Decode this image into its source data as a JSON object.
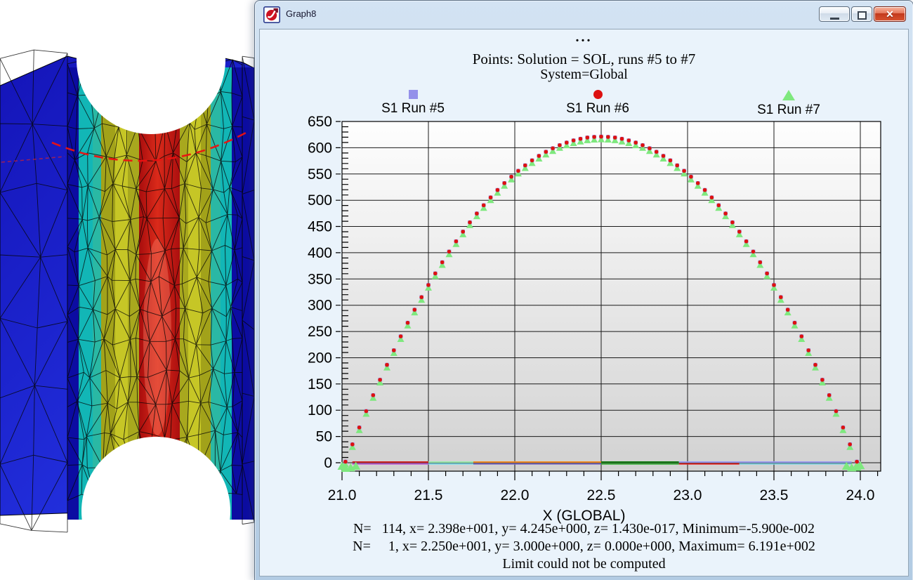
{
  "window": {
    "title": "Graph8",
    "controls": {
      "minimize_label": "minimize",
      "restore_label": "restore",
      "close_label": "close"
    }
  },
  "fea_view": {
    "contour_colors": [
      "#0c0ca2",
      "#12b6b6",
      "#2ab8a4",
      "#a2a21a",
      "#c6c626",
      "#a8a81e",
      "#c81414"
    ],
    "body_blue_top": "#1414b8",
    "body_blue_bottom": "#2433e2",
    "mesh_color": "#050505",
    "dashed_line_color": "#ee1111",
    "background": "#ffffff"
  },
  "chart_data": {
    "type": "scatter",
    "title_dots": "...",
    "title": "Points: Solution = SOL, runs #5 to #7",
    "subtitle": "System=Global",
    "xlabel": "X (GLOBAL)",
    "xlim": [
      21.0,
      24.118
    ],
    "ylim": [
      -16,
      650
    ],
    "x_ticks": [
      21.0,
      21.5,
      22.0,
      22.5,
      23.0,
      23.5,
      24.0
    ],
    "x_tick_labels": [
      "21.0",
      "21.5",
      "22.0",
      "22.5",
      "23.0",
      "23.5",
      "24.0"
    ],
    "y_ticks": [
      0,
      50,
      100,
      150,
      200,
      250,
      300,
      350,
      400,
      450,
      500,
      550,
      600,
      650
    ],
    "x_minor_step": 0.1,
    "y_minor_step": 10,
    "grid": true,
    "plot_bg_top": "#fefefe",
    "plot_bg_bottom": "#d2d2d2",
    "legend": [
      {
        "name": "S1 Run #5",
        "marker": "square",
        "color": "#9490ea"
      },
      {
        "name": "S1 Run #6",
        "marker": "circle",
        "color": "#dd1111"
      },
      {
        "name": "S1 Run #7",
        "marker": "triangle",
        "color": "#7ee87e"
      }
    ],
    "series_note": "Three runs overlap on identical values; peak 619.1 at x=22.5, zero at x=21 and x=24",
    "points": [
      [
        21.02,
        0
      ],
      [
        21.06,
        33
      ],
      [
        21.1,
        65.1
      ],
      [
        21.14,
        96.3
      ],
      [
        21.18,
        126.6
      ],
      [
        21.22,
        156
      ],
      [
        21.26,
        184.5
      ],
      [
        21.3,
        212.1
      ],
      [
        21.34,
        238.8
      ],
      [
        21.38,
        264.6
      ],
      [
        21.42,
        289.4
      ],
      [
        21.46,
        313.4
      ],
      [
        21.5,
        336.5
      ],
      [
        21.54,
        358.6
      ],
      [
        21.58,
        379.9
      ],
      [
        21.62,
        400.2
      ],
      [
        21.66,
        419.7
      ],
      [
        21.7,
        438.2
      ],
      [
        21.74,
        455.8
      ],
      [
        21.78,
        472.6
      ],
      [
        21.82,
        488.4
      ],
      [
        21.86,
        503.3
      ],
      [
        21.9,
        517.4
      ],
      [
        21.94,
        530.5
      ],
      [
        21.98,
        542.7
      ],
      [
        22.02,
        554
      ],
      [
        22.06,
        564.4
      ],
      [
        22.1,
        573.9
      ],
      [
        22.14,
        582.5
      ],
      [
        22.18,
        590.2
      ],
      [
        22.22,
        596.9
      ],
      [
        22.26,
        602.8
      ],
      [
        22.3,
        607.8
      ],
      [
        22.34,
        611.9
      ],
      [
        22.38,
        615
      ],
      [
        22.42,
        617.3
      ],
      [
        22.46,
        618.6
      ],
      [
        22.5,
        619.1
      ],
      [
        22.54,
        618.6
      ],
      [
        22.58,
        617.3
      ],
      [
        22.62,
        615
      ],
      [
        22.66,
        611.9
      ],
      [
        22.7,
        607.8
      ],
      [
        22.74,
        602.8
      ],
      [
        22.78,
        596.9
      ],
      [
        22.82,
        590.2
      ],
      [
        22.86,
        582.5
      ],
      [
        22.9,
        573.9
      ],
      [
        22.94,
        564.4
      ],
      [
        22.98,
        554
      ],
      [
        23.02,
        542.7
      ],
      [
        23.06,
        530.5
      ],
      [
        23.1,
        517.4
      ],
      [
        23.14,
        503.3
      ],
      [
        23.18,
        488.4
      ],
      [
        23.22,
        472.6
      ],
      [
        23.26,
        455.8
      ],
      [
        23.3,
        438.2
      ],
      [
        23.34,
        419.7
      ],
      [
        23.38,
        400.2
      ],
      [
        23.42,
        379.9
      ],
      [
        23.46,
        358.6
      ],
      [
        23.5,
        336.5
      ],
      [
        23.54,
        313.4
      ],
      [
        23.58,
        289.4
      ],
      [
        23.62,
        264.6
      ],
      [
        23.66,
        238.8
      ],
      [
        23.7,
        212.1
      ],
      [
        23.74,
        184.5
      ],
      [
        23.78,
        156
      ],
      [
        23.82,
        126.6
      ],
      [
        23.86,
        96.3
      ],
      [
        23.9,
        65.1
      ],
      [
        23.94,
        33
      ],
      [
        23.98,
        0
      ]
    ],
    "end_clusters": [
      [
        21.0,
        -4
      ],
      [
        21.02,
        -8
      ],
      [
        21.05,
        -7
      ],
      [
        21.08,
        -4
      ],
      [
        23.92,
        -4
      ],
      [
        23.95,
        -7
      ],
      [
        23.98,
        -6
      ],
      [
        24.0,
        -3
      ]
    ],
    "baseline_segments": [
      {
        "x1": 21.06,
        "x2": 21.5,
        "color": "#cc2222",
        "row": 0
      },
      {
        "x1": 21.06,
        "x2": 21.5,
        "color": "#bb55cc",
        "row": 1
      },
      {
        "x1": 21.5,
        "x2": 21.76,
        "color": "#99e8aa",
        "row": 0
      },
      {
        "x1": 21.5,
        "x2": 21.76,
        "color": "#77d8e8",
        "row": 1
      },
      {
        "x1": 21.76,
        "x2": 22.5,
        "color": "#ee8822",
        "row": 0
      },
      {
        "x1": 21.76,
        "x2": 22.5,
        "color": "#7766bb",
        "row": 1
      },
      {
        "x1": 22.5,
        "x2": 22.95,
        "color": "#117711",
        "row": 0
      },
      {
        "x1": 22.5,
        "x2": 22.95,
        "color": "#33aa33",
        "row": 1
      },
      {
        "x1": 22.95,
        "x2": 23.95,
        "color": "#9999ee",
        "row": 0
      },
      {
        "x1": 22.95,
        "x2": 23.3,
        "color": "#dd2222",
        "row": 1
      },
      {
        "x1": 23.3,
        "x2": 23.95,
        "color": "#77ccdd",
        "row": 1
      }
    ],
    "footer": [
      "N=   114, x= 2.398e+001, y= 4.245e+000, z= 1.430e-017, Minimum=-5.900e-002",
      "N=     1, x= 2.250e+001, y= 3.000e+000, z= 0.000e+000, Maximum= 6.191e+002",
      "Limit could not be computed"
    ]
  }
}
